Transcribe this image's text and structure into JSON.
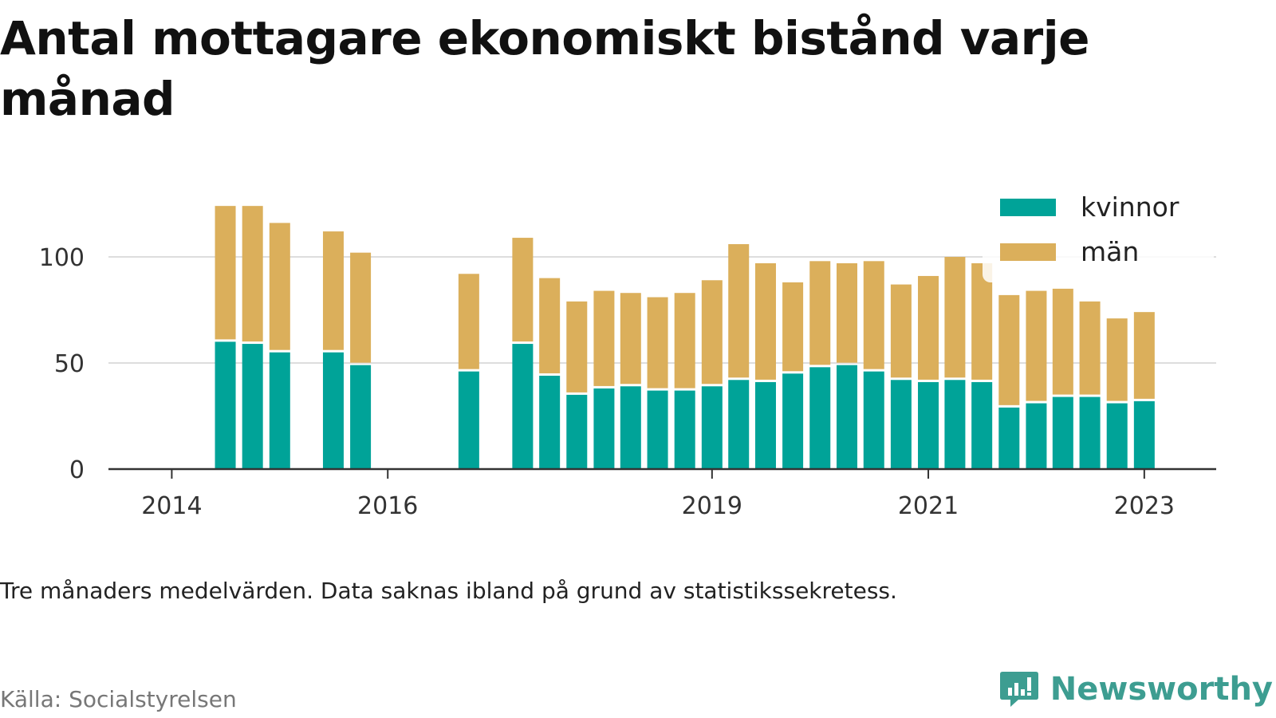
{
  "title": "Antal mottagare ekonomiskt bistånd varje månad",
  "note": "Tre månaders medelvärden. Data saknas ibland på grund av statistikssekretess.",
  "source": "Källa: Socialstyrelsen",
  "brand": {
    "name": "Newsworthy",
    "icon": "bar-chart-speech-bubble-icon"
  },
  "colors": {
    "kvinnor": "#00a398",
    "man": "#dbaf5b",
    "grid": "#dddddd",
    "axis": "#333333"
  },
  "chart_data": {
    "type": "bar",
    "stacked": true,
    "grid": true,
    "legend_position": "top-right",
    "ylim": [
      0,
      130
    ],
    "yticks": [
      0,
      50,
      100
    ],
    "x_tick_labels": [
      "2014",
      "2016",
      "2019",
      "2021",
      "2023"
    ],
    "x_ticks": [
      "2014-01-01",
      "2016-01-01",
      "2019-01-01",
      "2021-01-01",
      "2023-01-01"
    ],
    "x_range": [
      "2013-06-01",
      "2023-09-01"
    ],
    "x": [
      "2014-07-01",
      "2014-10-01",
      "2015-01-01",
      "2015-07-01",
      "2015-10-01",
      "2016-10-01",
      "2017-04-01",
      "2017-07-01",
      "2017-10-01",
      "2018-01-01",
      "2018-04-01",
      "2018-07-01",
      "2018-10-01",
      "2019-01-01",
      "2019-04-01",
      "2019-07-01",
      "2019-10-01",
      "2020-01-01",
      "2020-04-01",
      "2020-07-01",
      "2020-10-01",
      "2021-01-01",
      "2021-04-01",
      "2021-07-01",
      "2021-10-01",
      "2022-01-01",
      "2022-04-01",
      "2022-07-01",
      "2022-10-01",
      "2023-01-01"
    ],
    "series": [
      {
        "name": "kvinnor",
        "values": [
          60,
          59,
          55,
          55,
          49,
          46,
          59,
          44,
          35,
          38,
          39,
          37,
          37,
          39,
          42,
          41,
          45,
          48,
          49,
          46,
          42,
          41,
          42,
          41,
          29,
          31,
          34,
          34,
          31,
          32
        ]
      },
      {
        "name": "män",
        "values": [
          64,
          65,
          61,
          57,
          53,
          46,
          50,
          46,
          44,
          46,
          44,
          44,
          46,
          50,
          64,
          56,
          43,
          50,
          48,
          52,
          45,
          50,
          58,
          56,
          53,
          53,
          51,
          45,
          40,
          42
        ]
      }
    ]
  }
}
